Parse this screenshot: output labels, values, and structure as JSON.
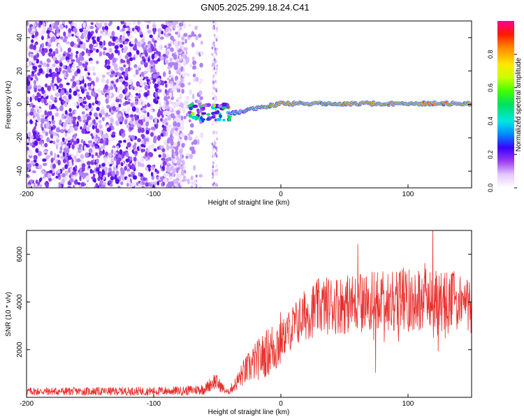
{
  "title": "GN05.2025.299.18.24.C41",
  "colors": {
    "signal": "#e8302c",
    "axis": "#000000"
  },
  "chart_data": [
    {
      "type": "heatmap",
      "xlabel": "Height of straight line (km)",
      "ylabel": "Frequency (Hz)",
      "xlim": [
        -200,
        150
      ],
      "ylim": [
        -50,
        50
      ],
      "xticks": [
        -200,
        -100,
        0,
        100
      ],
      "xtick_labels": [
        "-200",
        "-100",
        "0",
        "100"
      ],
      "yticks": [
        -40,
        -20,
        0,
        20,
        40
      ],
      "ytick_labels": [
        "-40",
        "-20",
        "0",
        "20",
        "40"
      ],
      "colorbar": {
        "label": "Normalized spectral amplitude",
        "range": [
          0,
          1
        ],
        "ticks": [
          0.0,
          0.2,
          0.4,
          0.6,
          0.8
        ],
        "tick_labels": [
          "0.0",
          "0.2",
          "0.4",
          "0.6",
          "0.8"
        ]
      },
      "regions": [
        {
          "name": "noise",
          "x_range": [
            -200,
            -70
          ],
          "freq_range": [
            -50,
            50
          ],
          "amplitude": 0.15
        },
        {
          "name": "noise-column",
          "x_range": [
            -54,
            -50
          ],
          "freq_range": [
            -50,
            50
          ],
          "amplitude": 0.1
        },
        {
          "name": "onset-cluster",
          "x_range": [
            -75,
            -40
          ],
          "freq_range": [
            -10,
            0
          ],
          "amplitude": 0.35
        },
        {
          "name": "carrier",
          "x_range": [
            -40,
            150
          ],
          "freq_center": 0.5,
          "amplitude": 0.9
        }
      ]
    },
    {
      "type": "line",
      "xlabel": "Height of straight line (km)",
      "ylabel": "SNR (10 * v/v)",
      "xlim": [
        -200,
        150
      ],
      "ylim": [
        0,
        7000
      ],
      "xticks": [
        -200,
        -100,
        0,
        100
      ],
      "xtick_labels": [
        "-200",
        "-100",
        "0",
        "100"
      ],
      "yticks": [
        2000,
        4000,
        6000
      ],
      "ytick_labels": [
        "2000",
        "4000",
        "6000"
      ],
      "series": [
        {
          "name": "SNR",
          "x": [
            -200,
            -150,
            -100,
            -75,
            -60,
            -52,
            -48,
            -42,
            -35,
            -30,
            -20,
            -10,
            0,
            10,
            20,
            30,
            40,
            50,
            60,
            80,
            100,
            120,
            140,
            150
          ],
          "y": [
            250,
            250,
            260,
            280,
            350,
            700,
            500,
            200,
            600,
            1000,
            1500,
            1900,
            2400,
            3000,
            3500,
            3800,
            3900,
            3900,
            3950,
            4050,
            4100,
            4100,
            4000,
            3800
          ]
        }
      ]
    }
  ]
}
